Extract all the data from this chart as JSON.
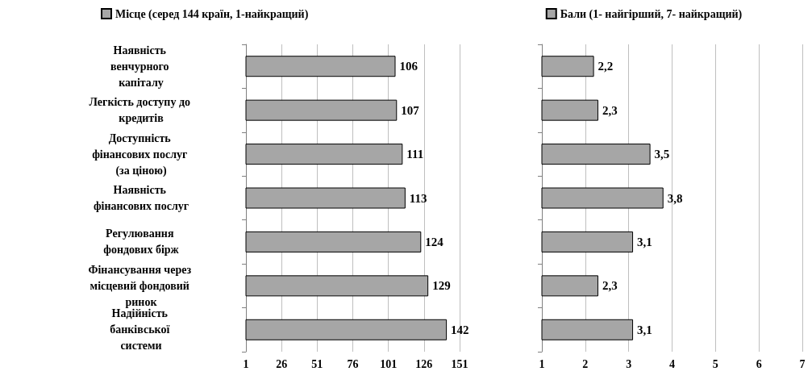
{
  "chart_data": [
    {
      "type": "bar",
      "orientation": "horizontal",
      "categories": [
        "Наявність венчурного капіталу",
        "Легкість доступу до кредитів",
        "Доступність фінансових послуг (за ціною)",
        "Наявність фінансових послуг",
        "Регулювання фондових бірж",
        "Фінансування через місцевий фондовий ринок",
        "Надійність банківської системи"
      ],
      "series": [
        {
          "name": "Місце (серед 144 країн, 1-найкращий)",
          "color": "#a6a6a6",
          "values": [
            106,
            107,
            111,
            113,
            124,
            129,
            142
          ]
        }
      ],
      "xlim": [
        1,
        151
      ],
      "xticks": [
        1,
        26,
        51,
        76,
        101,
        126,
        151
      ],
      "grid": "x",
      "legend": "top",
      "data_labels": true
    },
    {
      "type": "bar",
      "orientation": "horizontal",
      "categories": [
        null,
        null,
        null,
        null,
        null,
        null,
        null
      ],
      "series": [
        {
          "name": "Бали (1- найгірший, 7- найкращий)",
          "color": "#a6a6a6",
          "values": [
            2.2,
            2.3,
            3.5,
            3.8,
            3.1,
            2.3,
            3.1
          ],
          "value_labels": [
            "2,2",
            "2,3",
            "3,5",
            "3,8",
            "3,1",
            "2,3",
            "3,1"
          ]
        }
      ],
      "xlim": [
        1,
        7
      ],
      "xticks": [
        1,
        2,
        3,
        4,
        5,
        6,
        7
      ],
      "grid": "x",
      "legend": "top",
      "tick_labels": "x"
    }
  ]
}
